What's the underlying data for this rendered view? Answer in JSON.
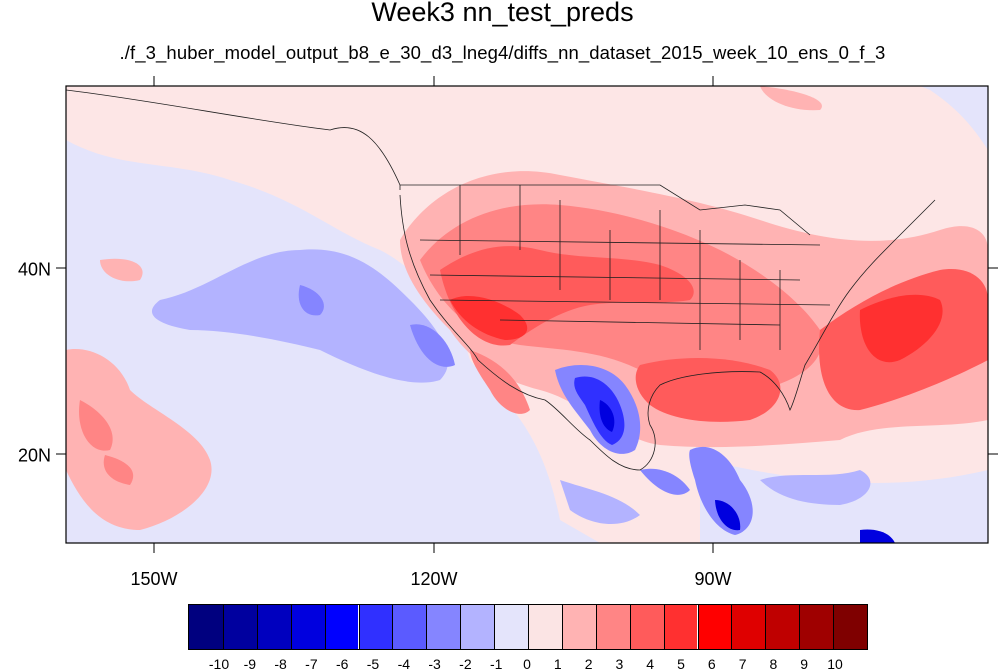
{
  "title": "Week3 nn_test_preds",
  "subtitle": "./f_3_huber_model_output_b8_e_30_d3_lneg4/diffs_nn_dataset_2015_week_10_ens_0_f_3",
  "longitude_labels": [
    "150W",
    "120W",
    "90W"
  ],
  "latitude_labels": [
    "40N",
    "20N"
  ],
  "colorbar": {
    "labels": [
      "-10",
      "-9",
      "-8",
      "-7",
      "-6",
      "-5",
      "-4",
      "-3",
      "-2",
      "-1",
      "0",
      "1",
      "2",
      "3",
      "4",
      "5",
      "6",
      "7",
      "8",
      "9",
      "10"
    ],
    "colors": [
      "#00007f",
      "#00009f",
      "#0000bf",
      "#0000df",
      "#0000ff",
      "#3030ff",
      "#5b5bff",
      "#8585ff",
      "#b3b3ff",
      "#e4e4fb",
      "#fbe4e4",
      "#ffb3b3",
      "#ff8585",
      "#ff5b5b",
      "#ff3030",
      "#ff0000",
      "#df0000",
      "#bf0000",
      "#9f0000",
      "#7f0000"
    ]
  }
}
